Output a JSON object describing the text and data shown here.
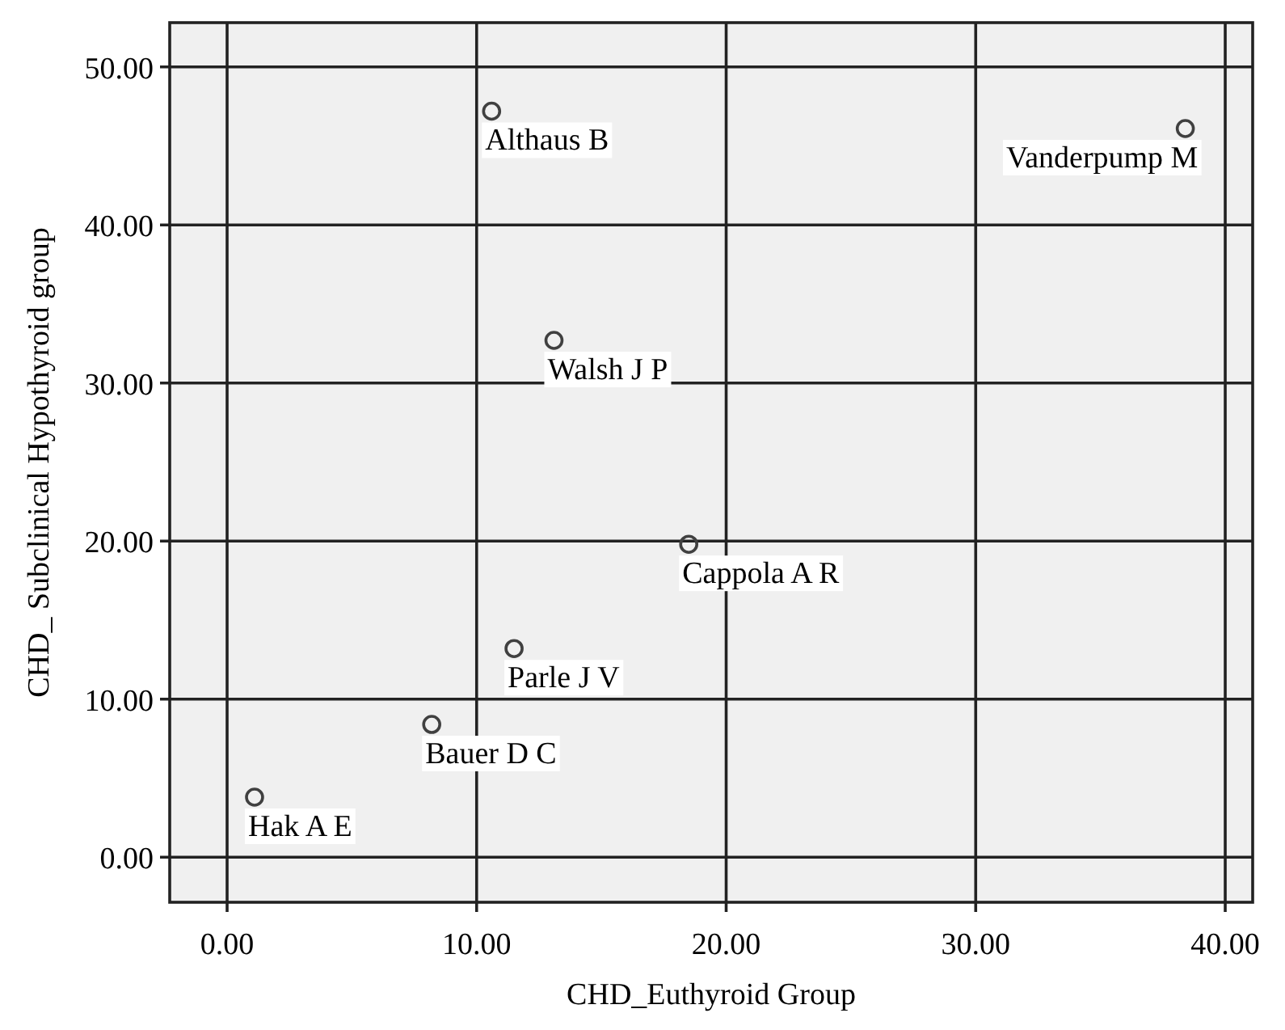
{
  "chart_data": {
    "type": "scatter",
    "xlabel": "CHD_Euthyroid Group",
    "ylabel": "CHD_ Subclinical Hypothyroid group",
    "x": [
      10.6,
      38.4,
      13.1,
      18.5,
      11.5,
      8.2,
      1.1
    ],
    "values": [
      47.2,
      46.1,
      32.7,
      19.8,
      13.2,
      8.4,
      3.8
    ],
    "color": "#404040",
    "marker": "circle",
    "grid": true,
    "xlim": [
      -2.3,
      41.1
    ],
    "ylim": [
      -2.85,
      52.8
    ],
    "xticks": [
      {
        "value": 0,
        "label": "0.00"
      },
      {
        "value": 10,
        "label": "10.00"
      },
      {
        "value": 20,
        "label": "20.00"
      },
      {
        "value": 30,
        "label": "30.00"
      },
      {
        "value": 40,
        "label": "40.00"
      }
    ],
    "yticks": [
      {
        "value": 0,
        "label": "0.00"
      },
      {
        "value": 10,
        "label": "10.00"
      },
      {
        "value": 20,
        "label": "20.00"
      },
      {
        "value": 30,
        "label": "30.00"
      },
      {
        "value": 40,
        "label": "40.00"
      },
      {
        "value": 50,
        "label": "50.00"
      }
    ],
    "annotations": [
      {
        "text": "Althaus B",
        "x": 10.6,
        "y": 47.2
      },
      {
        "text": "Vanderpump M",
        "x": 38.4,
        "y": 46.1
      },
      {
        "text": "Walsh J P",
        "x": 13.1,
        "y": 32.7
      },
      {
        "text": "Cappola A R",
        "x": 18.5,
        "y": 19.8
      },
      {
        "text": "Parle J V",
        "x": 11.5,
        "y": 13.2
      },
      {
        "text": "Bauer D C",
        "x": 8.2,
        "y": 8.4
      },
      {
        "text": "Hak A E",
        "x": 1.1,
        "y": 3.8
      }
    ]
  }
}
